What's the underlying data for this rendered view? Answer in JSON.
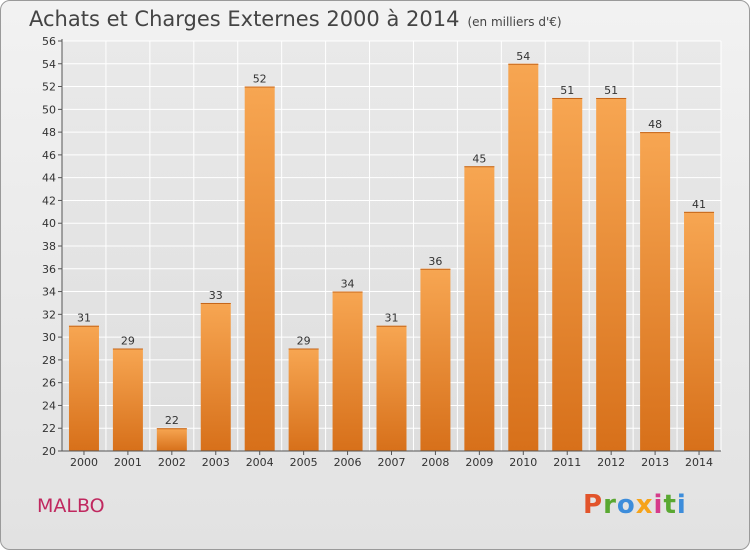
{
  "header": {
    "title": "Achats et Charges Externes 2000 à 2014",
    "subtitle": "(en milliers d'€)"
  },
  "footer": {
    "commune": "MALBO",
    "brand": "Proxiti"
  },
  "colors": {
    "bar_top": "#f7a652",
    "bar_bottom": "#d7701a",
    "commune": "#c0285f",
    "brand_letters": [
      "#e2542b",
      "#5aa832",
      "#3d8ddb",
      "#f6a31a",
      "#d63b8b",
      "#5aa832",
      "#3d8ddb"
    ]
  },
  "chart_data": {
    "type": "bar",
    "title": "Achats et Charges Externes 2000 à 2014",
    "subtitle": "(en milliers d'€)",
    "xlabel": "",
    "ylabel": "",
    "categories": [
      "2000",
      "2001",
      "2002",
      "2003",
      "2004",
      "2005",
      "2006",
      "2007",
      "2008",
      "2009",
      "2010",
      "2011",
      "2012",
      "2013",
      "2014"
    ],
    "values": [
      31,
      29,
      22,
      33,
      52,
      29,
      34,
      31,
      36,
      45,
      54,
      51,
      51,
      48,
      41
    ],
    "ylim": [
      20,
      56
    ],
    "yticks": [
      20,
      22,
      24,
      26,
      28,
      30,
      32,
      34,
      36,
      38,
      40,
      42,
      44,
      46,
      48,
      50,
      52,
      54,
      56
    ],
    "grid": true,
    "data_labels": true
  }
}
